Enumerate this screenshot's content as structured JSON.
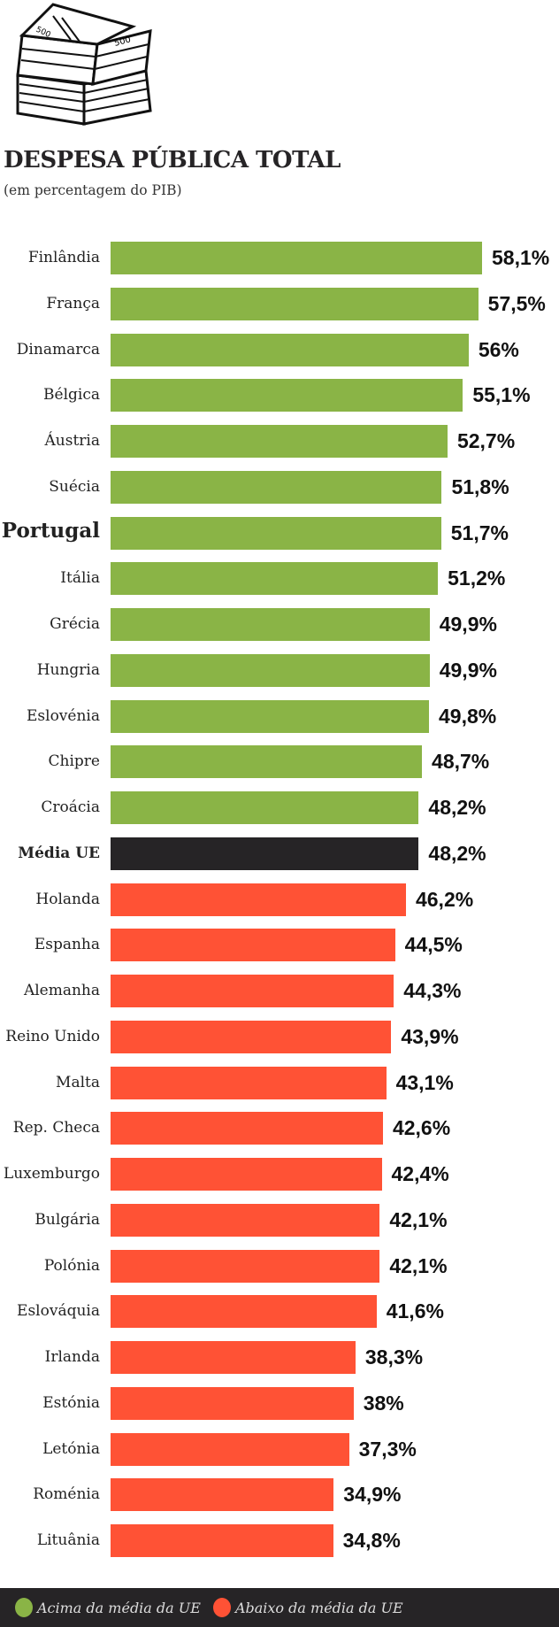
{
  "title": "DESPESA PÚBLICA TOTAL",
  "subtitle": "(em percentagem do PIB)",
  "colors": {
    "above": "#8ab446",
    "below": "#ff5235",
    "average": "#262426"
  },
  "legend": [
    {
      "label": "Acima da média da UE",
      "color": "#8ab446"
    },
    {
      "label": "Abaixo da média da UE",
      "color": "#ff5235"
    }
  ],
  "chart_data": {
    "type": "bar",
    "orientation": "horizontal",
    "title": "DESPESA PÚBLICA TOTAL",
    "subtitle": "(em percentagem do PIB)",
    "unit": "%",
    "categories": [
      "Finlândia",
      "França",
      "Dinamarca",
      "Bélgica",
      "Áustria",
      "Suécia",
      "Portugal",
      "Itália",
      "Grécia",
      "Hungria",
      "Eslovénia",
      "Chipre",
      "Croácia",
      "Média UE",
      "Holanda",
      "Espanha",
      "Alemanha",
      "Reino Unido",
      "Malta",
      "Rep. Checa",
      "Luxemburgo",
      "Bulgária",
      "Polónia",
      "Eslováquia",
      "Irlanda",
      "Estónia",
      "Letónia",
      "Roménia",
      "Lituânia"
    ],
    "values": [
      58.1,
      57.5,
      56,
      55.1,
      52.7,
      51.8,
      51.7,
      51.2,
      49.9,
      49.9,
      49.8,
      48.7,
      48.2,
      48.2,
      46.2,
      44.5,
      44.3,
      43.9,
      43.1,
      42.6,
      42.4,
      42.1,
      42.1,
      41.6,
      38.3,
      38,
      37.3,
      34.9,
      34.8
    ],
    "value_labels": [
      "58,1%",
      "57,5%",
      "56%",
      "55,1%",
      "52,7%",
      "51,8%",
      "51,7%",
      "51,2%",
      "49,9%",
      "49,9%",
      "49,8%",
      "48,7%",
      "48,2%",
      "48,2%",
      "46,2%",
      "44,5%",
      "44,3%",
      "43,9%",
      "43,1%",
      "42,6%",
      "42,4%",
      "42,1%",
      "42,1%",
      "41,6%",
      "38,3%",
      "38%",
      "37,3%",
      "34,9%",
      "34,8%"
    ],
    "groups": [
      "above",
      "above",
      "above",
      "above",
      "above",
      "above",
      "above",
      "above",
      "above",
      "above",
      "above",
      "above",
      "above",
      "average",
      "below",
      "below",
      "below",
      "below",
      "below",
      "below",
      "below",
      "below",
      "below",
      "below",
      "below",
      "below",
      "below",
      "below",
      "below"
    ],
    "highlight": "Portugal",
    "grid": false,
    "legend_placement": "bottom"
  }
}
